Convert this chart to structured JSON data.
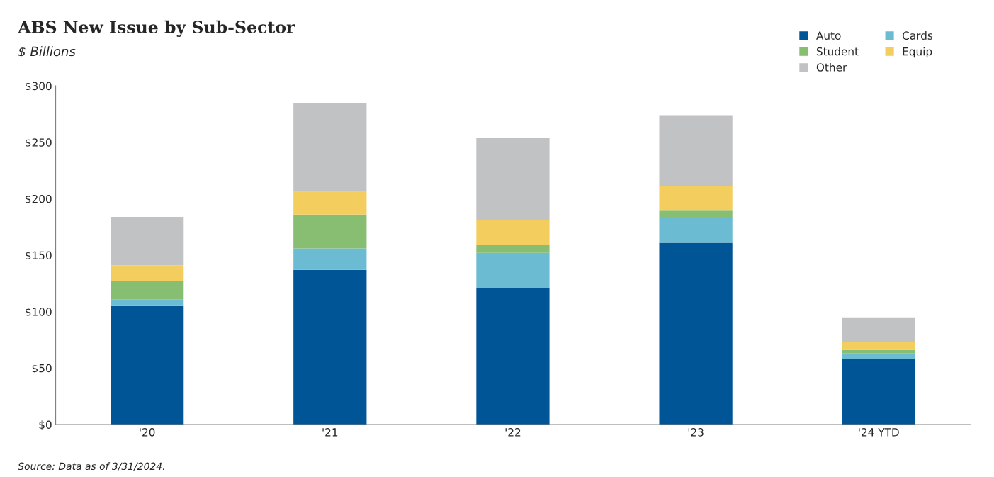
{
  "chart_data": {
    "type": "bar",
    "title": "ABS New Issue by Sub-Sector",
    "subtitle": "$ Billions",
    "categories": [
      "'20",
      "'21",
      "'22",
      "'23",
      "'24 YTD"
    ],
    "stacked": true,
    "series": [
      {
        "name": "Auto",
        "color": "#005596",
        "values": [
          105,
          137,
          121,
          161,
          58
        ]
      },
      {
        "name": "Cards",
        "color": "#6bbcd3",
        "values": [
          6,
          19,
          31,
          22,
          5
        ]
      },
      {
        "name": "Student",
        "color": "#88be72",
        "values": [
          16,
          30,
          7,
          7,
          3
        ]
      },
      {
        "name": "Equip",
        "color": "#f3cd5e",
        "values": [
          14,
          20,
          22,
          21,
          7
        ]
      },
      {
        "name": "Other",
        "color": "#c1c2c4",
        "values": [
          43,
          79,
          73,
          63,
          22
        ]
      }
    ],
    "ylim": [
      0,
      300
    ],
    "yticks": [
      {
        "value": 0,
        "label": "$0"
      },
      {
        "value": 50,
        "label": "$50"
      },
      {
        "value": 100,
        "label": "$100"
      },
      {
        "value": 150,
        "label": "$150"
      },
      {
        "value": 200,
        "label": "$200"
      },
      {
        "value": 250,
        "label": "$250"
      },
      {
        "value": 300,
        "label": "$300"
      }
    ],
    "grid": false,
    "legend": "top right",
    "annotations": [
      "Source: Data as of 3/31/2024."
    ]
  }
}
